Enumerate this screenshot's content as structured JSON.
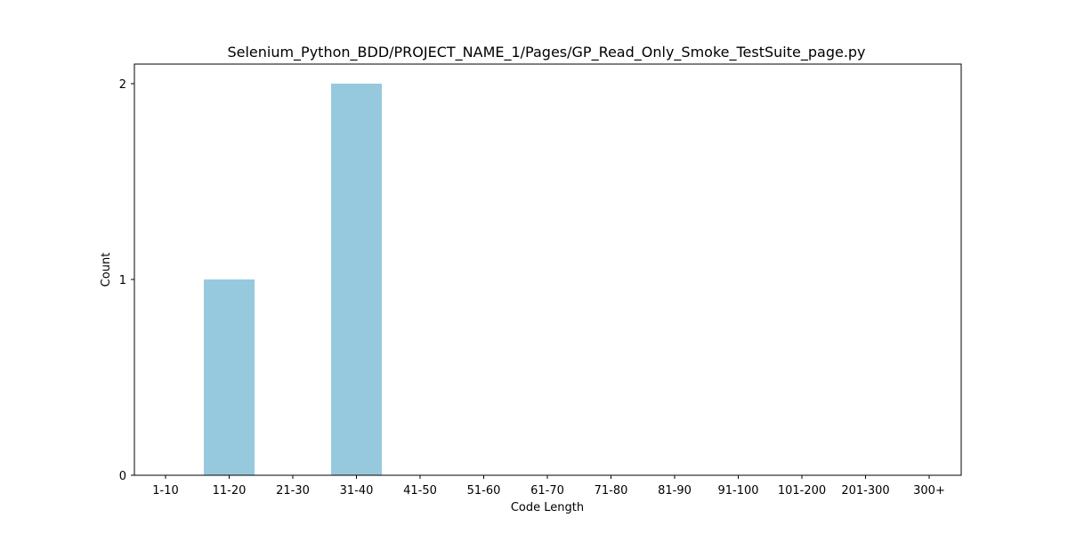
{
  "chart_data": {
    "type": "bar",
    "title": "Selenium_Python_BDD/PROJECT_NAME_1/Pages/GP_Read_Only_Smoke_TestSuite_page.py",
    "xlabel": "Code Length",
    "ylabel": "Count",
    "categories": [
      "1-10",
      "11-20",
      "21-30",
      "31-40",
      "41-50",
      "51-60",
      "61-70",
      "71-80",
      "81-90",
      "91-100",
      "101-200",
      "201-300",
      "300+"
    ],
    "values": [
      0,
      1,
      0,
      2,
      0,
      0,
      0,
      0,
      0,
      0,
      0,
      0,
      0
    ],
    "ylim": [
      0,
      2.1
    ],
    "yticks": [
      0,
      1,
      2
    ],
    "grid": false,
    "bar_color": "#96c9de"
  }
}
